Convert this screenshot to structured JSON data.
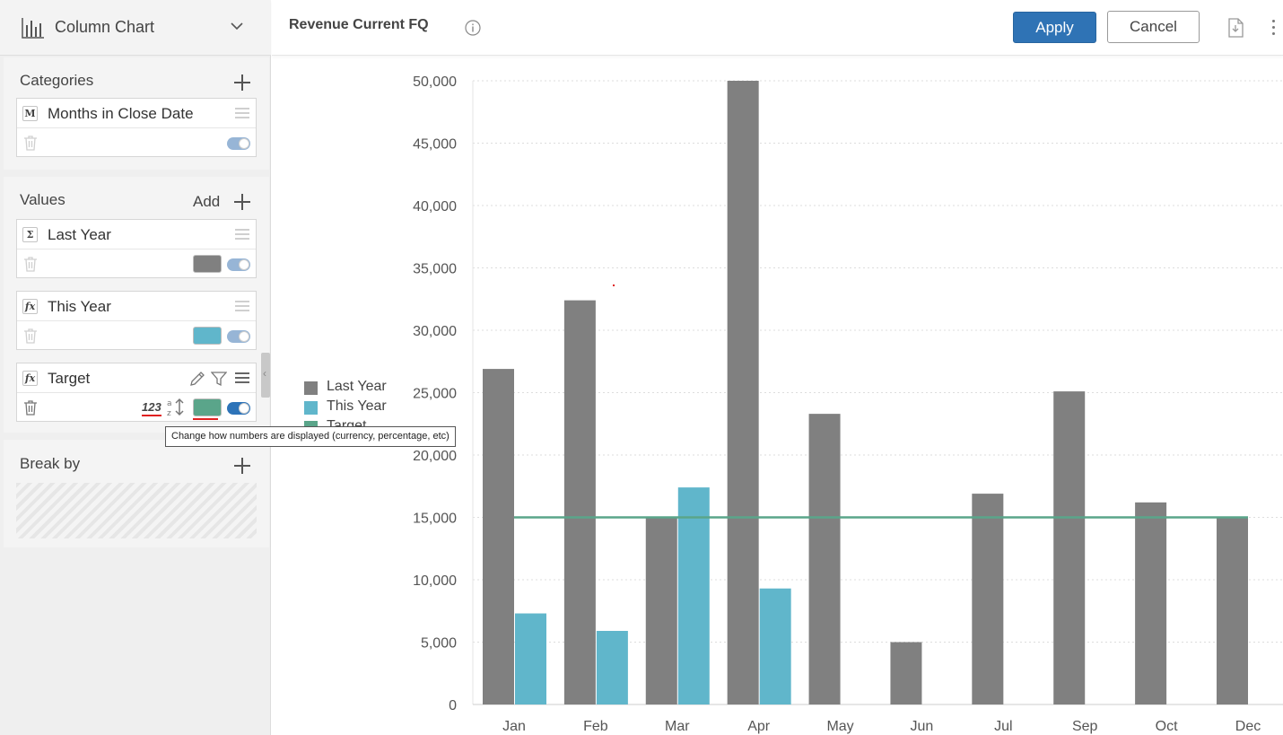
{
  "chart_type_selector": {
    "label": "Column Chart"
  },
  "categories_section": {
    "title": "Categories",
    "fields": [
      {
        "badge": "M",
        "name": "Months in Close Date"
      }
    ]
  },
  "values_section": {
    "title": "Values",
    "add_label": "Add",
    "fields": [
      {
        "badge": "Σ",
        "name": "Last Year",
        "color": "#808080"
      },
      {
        "badge": "fx",
        "name": "This Year",
        "color": "#60b6cb"
      },
      {
        "badge": "fx",
        "name": "Target",
        "color": "#5aa58a",
        "number_format_label": "123"
      }
    ]
  },
  "break_by_section": {
    "title": "Break by"
  },
  "tooltip": {
    "text": "Change how numbers are displayed (currency, percentage, etc)"
  },
  "header": {
    "title": "Revenue Current FQ",
    "apply_label": "Apply",
    "cancel_label": "Cancel"
  },
  "colors": {
    "accent": "#2f73b5",
    "last_year": "#808080",
    "this_year": "#60b6cb",
    "target": "#5aa58a"
  },
  "chart_data": {
    "type": "bar",
    "categories": [
      "Jan",
      "Feb",
      "Mar",
      "Apr",
      "May",
      "Jun",
      "Jul",
      "Sep",
      "Oct",
      "Dec"
    ],
    "series": [
      {
        "name": "Last Year",
        "values": [
          26900,
          32400,
          15000,
          50000,
          23300,
          5000,
          16900,
          25100,
          16200,
          15000
        ]
      },
      {
        "name": "This Year",
        "values": [
          7300,
          5900,
          17400,
          9300,
          null,
          null,
          null,
          null,
          null,
          null
        ]
      },
      {
        "name": "Target",
        "type": "line",
        "values": [
          15000,
          15000,
          15000,
          15000,
          15000,
          15000,
          15000,
          15000,
          15000,
          15000
        ]
      }
    ],
    "ylim": [
      0,
      50000
    ],
    "yticks": [
      "0",
      "5,000",
      "10,000",
      "15,000",
      "20,000",
      "25,000",
      "30,000",
      "35,000",
      "40,000",
      "45,000",
      "50,000"
    ],
    "grid": true,
    "legend_position": "left"
  }
}
